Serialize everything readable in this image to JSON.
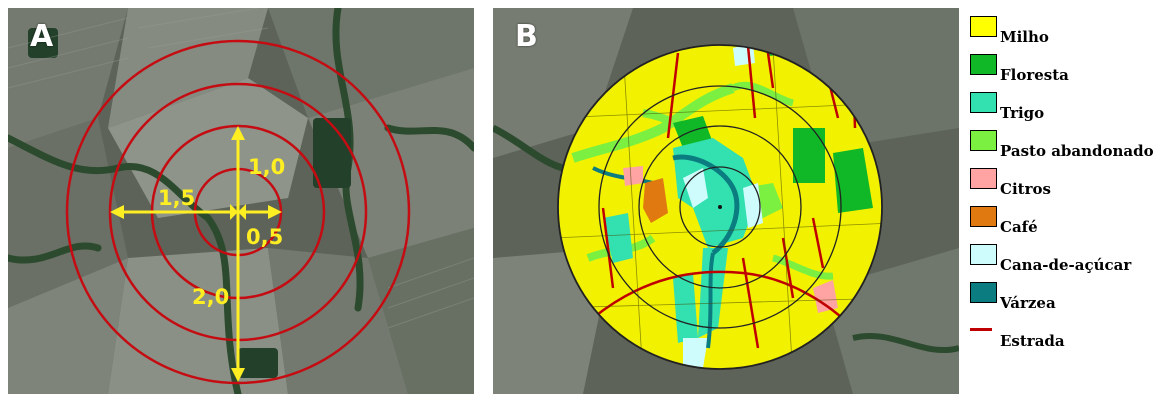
{
  "panel_a": {
    "letter": "A",
    "distances": {
      "d05": "0,5",
      "d10": "1,0",
      "d15": "1,5",
      "d20": "2,0"
    },
    "ring_color": "#c40c12",
    "arrow_color": "#ffee22"
  },
  "panel_b": {
    "letter": "B",
    "road_color": "#c00000",
    "ring_color": "#222222"
  },
  "legend": [
    {
      "label": "Milho",
      "color": "#ffff00",
      "kind": "swatch"
    },
    {
      "label": "Floresta",
      "color": "#10b828",
      "kind": "swatch"
    },
    {
      "label": "Trigo",
      "color": "#33e0b0",
      "kind": "swatch"
    },
    {
      "label": "Pasto abandonado",
      "color": "#7cf040",
      "kind": "swatch"
    },
    {
      "label": "Citros",
      "color": "#ffa3a3",
      "kind": "swatch"
    },
    {
      "label": "Café",
      "color": "#e07a10",
      "kind": "swatch"
    },
    {
      "label": "Cana-de-açúcar",
      "color": "#cefcfc",
      "kind": "swatch"
    },
    {
      "label": "Várzea",
      "color": "#0b7c80",
      "kind": "swatch"
    },
    {
      "label": "Estrada",
      "color": "#c00000",
      "kind": "line"
    }
  ]
}
